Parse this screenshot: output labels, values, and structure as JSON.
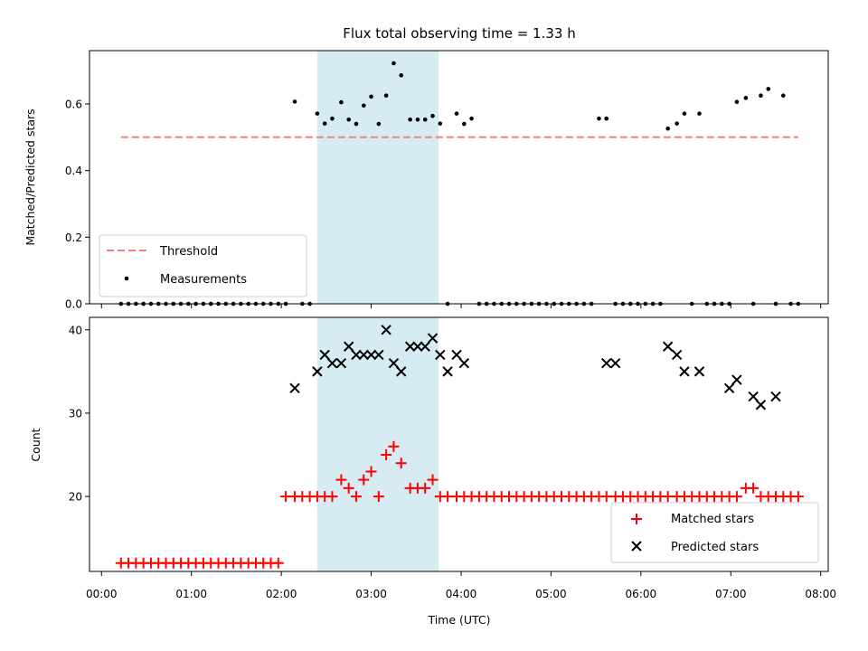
{
  "title": "Flux total observing time = 1.33 h",
  "xlabel": "Time (UTC)",
  "x_ticks": [
    "00:00",
    "01:00",
    "02:00",
    "03:00",
    "04:00",
    "05:00",
    "06:00",
    "07:00",
    "08:00"
  ],
  "colors": {
    "threshold": "#f08080",
    "measurements": "#000000",
    "matched": "#ff0000",
    "predicted": "#000000",
    "band": "#add8e6"
  },
  "chart_data": [
    {
      "type": "scatter",
      "ylabel": "Matched/Predicted stars",
      "xlim": [
        "-00:08",
        "08:05"
      ],
      "ylim": [
        0,
        0.76
      ],
      "y_ticks": [
        "0.0",
        "0.2",
        "0.4",
        "0.6"
      ],
      "shaded_interval": [
        "02:24",
        "03:45"
      ],
      "legend": "lower-left",
      "series": [
        {
          "name": "Threshold",
          "kind": "dashed-line",
          "x": [
            "00:13",
            "07:45"
          ],
          "y": [
            0.5,
            0.5
          ]
        },
        {
          "name": "Measurements",
          "kind": "dots",
          "x": [
            "00:13",
            "00:18",
            "00:23",
            "00:28",
            "00:33",
            "00:38",
            "00:43",
            "00:48",
            "00:53",
            "00:58",
            "01:03",
            "01:08",
            "01:13",
            "01:18",
            "01:23",
            "01:28",
            "01:33",
            "01:38",
            "01:43",
            "01:48",
            "01:53",
            "01:58",
            "02:03",
            "02:09",
            "02:14",
            "02:19",
            "02:24",
            "02:29",
            "02:34",
            "02:40",
            "02:45",
            "02:50",
            "02:55",
            "03:00",
            "03:05",
            "03:10",
            "03:15",
            "03:20",
            "03:26",
            "03:31",
            "03:36",
            "03:41",
            "03:46",
            "03:51",
            "03:57",
            "04:02",
            "04:07",
            "04:12",
            "04:17",
            "04:22",
            "04:27",
            "04:32",
            "04:37",
            "04:42",
            "04:47",
            "04:52",
            "04:57",
            "05:02",
            "05:07",
            "05:12",
            "05:17",
            "05:22",
            "05:27",
            "05:32",
            "05:37",
            "05:43",
            "05:48",
            "05:53",
            "05:58",
            "06:03",
            "06:08",
            "06:13",
            "06:18",
            "06:24",
            "06:29",
            "06:34",
            "06:39",
            "06:44",
            "06:49",
            "06:54",
            "06:59",
            "07:04",
            "07:10",
            "07:15",
            "07:20",
            "07:25",
            "07:30",
            "07:35",
            "07:40",
            "07:45"
          ],
          "y": [
            0,
            0,
            0,
            0,
            0,
            0,
            0,
            0,
            0,
            0,
            0,
            0,
            0,
            0,
            0,
            0,
            0,
            0,
            0,
            0,
            0,
            0,
            0,
            0.607,
            0,
            0,
            0.571,
            0.541,
            0.556,
            0.605,
            0.553,
            0.54,
            0.595,
            0.622,
            0.54,
            0.625,
            0.722,
            0.686,
            0.553,
            0.553,
            0.553,
            0.564,
            0.541,
            0,
            0.571,
            0.54,
            0.556,
            0,
            0,
            0,
            0,
            0,
            0,
            0,
            0,
            0,
            0,
            0,
            0,
            0,
            0,
            0,
            0,
            0.556,
            0.556,
            0,
            0,
            0,
            0,
            0,
            0,
            0,
            0.526,
            0.541,
            0.571,
            0,
            0.571,
            0,
            0,
            0,
            0,
            0.606,
            0.618,
            0,
            0.625,
            0.645,
            0,
            0.625,
            0,
            0
          ]
        }
      ]
    },
    {
      "type": "scatter",
      "ylabel": "Count",
      "xlim": [
        "-00:08",
        "08:05"
      ],
      "ylim": [
        11,
        41.5
      ],
      "y_ticks": [
        "20",
        "30",
        "40"
      ],
      "shaded_interval": [
        "02:24",
        "03:45"
      ],
      "legend": "lower-right",
      "series": [
        {
          "name": "Matched stars",
          "marker": "+",
          "x": [
            "00:13",
            "00:18",
            "00:23",
            "00:28",
            "00:33",
            "00:38",
            "00:43",
            "00:48",
            "00:53",
            "00:58",
            "01:03",
            "01:08",
            "01:13",
            "01:18",
            "01:23",
            "01:28",
            "01:33",
            "01:38",
            "01:43",
            "01:48",
            "01:53",
            "01:58",
            "02:03",
            "02:09",
            "02:14",
            "02:19",
            "02:24",
            "02:29",
            "02:34",
            "02:40",
            "02:45",
            "02:50",
            "02:55",
            "03:00",
            "03:05",
            "03:10",
            "03:15",
            "03:20",
            "03:26",
            "03:31",
            "03:36",
            "03:41",
            "03:46",
            "03:51",
            "03:57",
            "04:02",
            "04:07",
            "04:12",
            "04:17",
            "04:22",
            "04:27",
            "04:32",
            "04:37",
            "04:42",
            "04:47",
            "04:52",
            "04:57",
            "05:02",
            "05:07",
            "05:12",
            "05:17",
            "05:22",
            "05:27",
            "05:32",
            "05:37",
            "05:43",
            "05:48",
            "05:53",
            "05:58",
            "06:03",
            "06:08",
            "06:13",
            "06:18",
            "06:24",
            "06:29",
            "06:34",
            "06:39",
            "06:44",
            "06:49",
            "06:54",
            "06:59",
            "07:04",
            "07:10",
            "07:15",
            "07:20",
            "07:25",
            "07:30",
            "07:35",
            "07:40",
            "07:45"
          ],
          "y": [
            12,
            12,
            12,
            12,
            12,
            12,
            12,
            12,
            12,
            12,
            12,
            12,
            12,
            12,
            12,
            12,
            12,
            12,
            12,
            12,
            12,
            12,
            20,
            20,
            20,
            20,
            20,
            20,
            20,
            22,
            21,
            20,
            22,
            23,
            20,
            25,
            26,
            24,
            21,
            21,
            21,
            22,
            20,
            20,
            20,
            20,
            20,
            20,
            20,
            20,
            20,
            20,
            20,
            20,
            20,
            20,
            20,
            20,
            20,
            20,
            20,
            20,
            20,
            20,
            20,
            20,
            20,
            20,
            20,
            20,
            20,
            20,
            20,
            20,
            20,
            20,
            20,
            20,
            20,
            20,
            20,
            20,
            21,
            21,
            20,
            20,
            20,
            20,
            20,
            20
          ]
        },
        {
          "name": "Predicted stars",
          "marker": "x",
          "x": [
            "02:09",
            "02:24",
            "02:29",
            "02:34",
            "02:40",
            "02:45",
            "02:50",
            "02:55",
            "03:00",
            "03:05",
            "03:10",
            "03:15",
            "03:20",
            "03:26",
            "03:31",
            "03:36",
            "03:41",
            "03:46",
            "03:51",
            "03:57",
            "04:02",
            "05:37",
            "05:43",
            "06:18",
            "06:24",
            "06:29",
            "06:39",
            "06:59",
            "07:04",
            "07:15",
            "07:20",
            "07:30"
          ],
          "y": [
            33,
            35,
            37,
            36,
            36,
            38,
            37,
            37,
            37,
            37,
            40,
            36,
            35,
            38,
            38,
            38,
            39,
            37,
            35,
            37,
            36,
            36,
            36,
            38,
            37,
            35,
            35,
            33,
            34,
            32,
            31,
            32
          ]
        }
      ]
    }
  ]
}
